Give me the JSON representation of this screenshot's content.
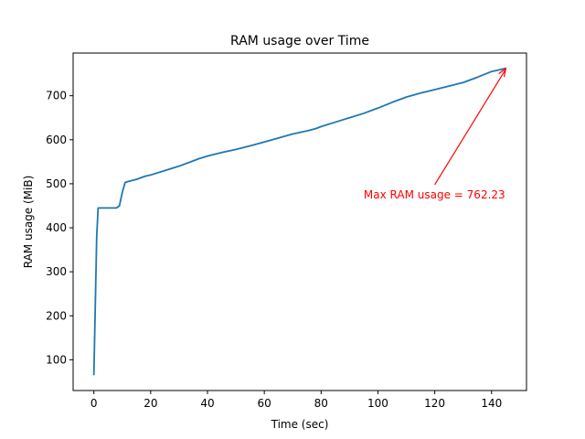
{
  "chart_data": {
    "type": "line",
    "title": "RAM usage over Time",
    "xlabel": "Time (sec)",
    "ylabel": "RAM usage (MiB)",
    "xlim": [
      -7.3,
      152.3
    ],
    "ylim": [
      30.2,
      797.0
    ],
    "xticks": [
      0,
      20,
      40,
      60,
      80,
      100,
      120,
      140
    ],
    "yticks": [
      100,
      200,
      300,
      400,
      500,
      600,
      700
    ],
    "grid": false,
    "legend": "none",
    "line_color": "#1f77b4",
    "series": [
      {
        "x": [
          0,
          1,
          1.5,
          5,
          8,
          9,
          10,
          11,
          12,
          15,
          18,
          20,
          25,
          30,
          35,
          37,
          40,
          45,
          50,
          55,
          60,
          65,
          70,
          75,
          78,
          80,
          85,
          90,
          95,
          100,
          105,
          110,
          115,
          120,
          125,
          130,
          135,
          140,
          145
        ],
        "y": [
          65,
          380,
          445,
          445,
          445,
          450,
          480,
          503,
          505,
          510,
          517,
          520,
          530,
          540,
          552,
          557,
          563,
          571,
          578,
          586,
          595,
          604,
          613,
          620,
          625,
          630,
          640,
          650,
          660,
          672,
          685,
          697,
          706,
          714,
          722,
          730,
          742,
          755,
          762.23
        ]
      }
    ],
    "annotation": {
      "text": "Max RAM usage = 762.23",
      "point": [
        145,
        762.23
      ],
      "text_pos": [
        95,
        475
      ],
      "color": "#ff0000"
    }
  }
}
